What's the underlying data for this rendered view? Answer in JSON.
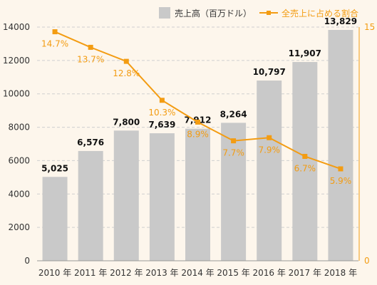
{
  "chart_data": {
    "type": "bar+line",
    "categories": [
      "2010 年",
      "2011 年",
      "2012 年",
      "2013 年",
      "2014 年",
      "2015 年",
      "2016 年",
      "2017 年",
      "2018 年"
    ],
    "series": [
      {
        "name": "売上高（百万ドル）",
        "type": "bar",
        "axis": "left",
        "values": [
          5025,
          6576,
          7800,
          7639,
          7912,
          8264,
          10797,
          11907,
          13829
        ],
        "labels": [
          "5,025",
          "6,576",
          "7,800",
          "7,639",
          "7,912",
          "8,264",
          "10,797",
          "11,907",
          "13,829"
        ],
        "color": "#c9c9c9"
      },
      {
        "name": "全売上に占める割合",
        "type": "line",
        "axis": "right",
        "values": [
          14.7,
          13.7,
          12.8,
          10.3,
          8.9,
          7.7,
          7.9,
          6.7,
          5.9
        ],
        "labels": [
          "14.7%",
          "13.7%",
          "12.8%",
          "10.3%",
          "8.9%",
          "7.7%",
          "7.9%",
          "6.7%",
          "5.9%"
        ],
        "color": "#f39c12"
      }
    ],
    "y_left": {
      "min": 0,
      "max": 14000,
      "ticks": [
        "0",
        "2000",
        "4000",
        "6000",
        "8000",
        "10000",
        "12000",
        "14000"
      ]
    },
    "y_right": {
      "min": 0,
      "max": 15,
      "ticks": [
        "0",
        "15"
      ]
    },
    "grid": "horizontal dashed",
    "legend": "top-right"
  }
}
